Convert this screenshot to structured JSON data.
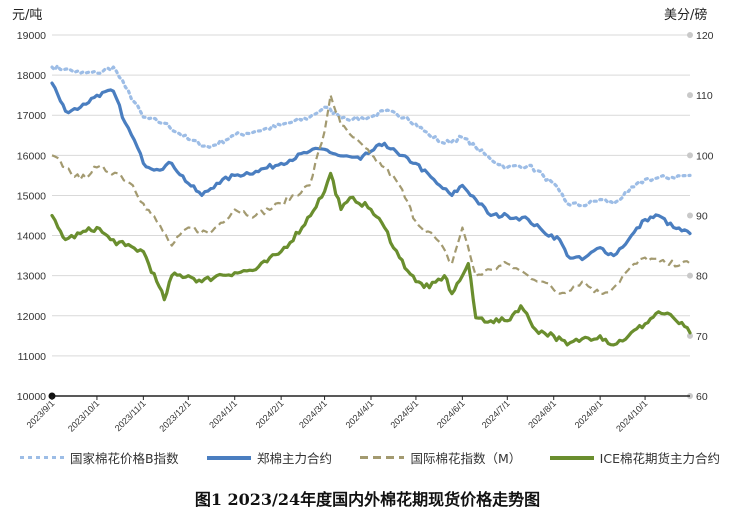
{
  "caption": "图1 2023/24年度国内外棉花期现货价格走势图",
  "chart_data": {
    "type": "line",
    "left_unit": "元/吨",
    "right_unit": "美分/磅",
    "left_axis": {
      "min": 10000,
      "max": 19000,
      "ticks": [
        10000,
        11000,
        12000,
        13000,
        14000,
        15000,
        16000,
        17000,
        18000,
        19000
      ]
    },
    "right_axis": {
      "min": 60,
      "max": 120,
      "ticks": [
        60,
        70,
        80,
        90,
        100,
        110,
        120
      ]
    },
    "grid": true,
    "legend_position": "bottom",
    "x_tick_labels": [
      "2023/9/1",
      "2023/10/1",
      "2023/11/1",
      "2023/12/1",
      "2024/1/1",
      "2024/2/1",
      "2024/3/1",
      "2024/4/1",
      "2024/5/1",
      "2024/6/1",
      "2024/7/1",
      "2024/8/1",
      "2024/9/1",
      "2024/10/1"
    ],
    "x_range": [
      "2023/9/1",
      "2024/10/31"
    ],
    "series": [
      {
        "name": "国家棉花价格B指数",
        "axis": "left",
        "style": "dotted",
        "color": "#9dbde6",
        "points": [
          [
            "2023/9/1",
            18200
          ],
          [
            "2023/9/10",
            18150
          ],
          [
            "2023/9/20",
            18050
          ],
          [
            "2023/10/1",
            18050
          ],
          [
            "2023/10/12",
            18200
          ],
          [
            "2023/10/20",
            17700
          ],
          [
            "2023/11/1",
            16950
          ],
          [
            "2023/11/15",
            16800
          ],
          [
            "2023/12/1",
            16400
          ],
          [
            "2023/12/15",
            16200
          ],
          [
            "2024/1/1",
            16500
          ],
          [
            "2024/1/15",
            16600
          ],
          [
            "2024/2/1",
            16750
          ],
          [
            "2024/2/20",
            16950
          ],
          [
            "2024/3/1",
            17200
          ],
          [
            "2024/3/10",
            17000
          ],
          [
            "2024/3/20",
            16900
          ],
          [
            "2024/4/1",
            16950
          ],
          [
            "2024/4/10",
            17100
          ],
          [
            "2024/4/25",
            16950
          ],
          [
            "2024/5/10",
            16500
          ],
          [
            "2024/5/20",
            16300
          ],
          [
            "2024/6/1",
            16450
          ],
          [
            "2024/6/10",
            16200
          ],
          [
            "2024/6/20",
            15900
          ],
          [
            "2024/7/1",
            15700
          ],
          [
            "2024/7/15",
            15750
          ],
          [
            "2024/7/25",
            15500
          ],
          [
            "2024/8/5",
            15100
          ],
          [
            "2024/8/10",
            14800
          ],
          [
            "2024/8/20",
            14750
          ],
          [
            "2024/9/1",
            14900
          ],
          [
            "2024/9/10",
            14800
          ],
          [
            "2024/9/20",
            15100
          ],
          [
            "2024/10/1",
            15400
          ],
          [
            "2024/10/31",
            15500
          ]
        ]
      },
      {
        "name": "郑棉主力合约",
        "axis": "left",
        "style": "solid",
        "color": "#4a7ec0",
        "points": [
          [
            "2023/9/1",
            17800
          ],
          [
            "2023/9/5",
            17500
          ],
          [
            "2023/9/10",
            17100
          ],
          [
            "2023/9/20",
            17200
          ],
          [
            "2023/10/1",
            17500
          ],
          [
            "2023/10/12",
            17600
          ],
          [
            "2023/10/20",
            16800
          ],
          [
            "2023/10/28",
            16200
          ],
          [
            "2023/11/1",
            15800
          ],
          [
            "2023/11/10",
            15650
          ],
          [
            "2023/11/20",
            15800
          ],
          [
            "2023/12/1",
            15300
          ],
          [
            "2023/12/10",
            15000
          ],
          [
            "2023/12/20",
            15300
          ],
          [
            "2024/1/1",
            15500
          ],
          [
            "2024/1/15",
            15600
          ],
          [
            "2024/2/1",
            15800
          ],
          [
            "2024/2/20",
            16100
          ],
          [
            "2024/3/1",
            16150
          ],
          [
            "2024/3/10",
            16000
          ],
          [
            "2024/3/25",
            15900
          ],
          [
            "2024/4/1",
            16100
          ],
          [
            "2024/4/10",
            16300
          ],
          [
            "2024/4/20",
            16000
          ],
          [
            "2024/5/1",
            15800
          ],
          [
            "2024/5/15",
            15300
          ],
          [
            "2024/5/25",
            15000
          ],
          [
            "2024/6/1",
            15250
          ],
          [
            "2024/6/10",
            14900
          ],
          [
            "2024/6/20",
            14500
          ],
          [
            "2024/7/1",
            14500
          ],
          [
            "2024/7/15",
            14400
          ],
          [
            "2024/7/25",
            14100
          ],
          [
            "2024/8/5",
            13900
          ],
          [
            "2024/8/10",
            13500
          ],
          [
            "2024/8/20",
            13400
          ],
          [
            "2024/9/1",
            13700
          ],
          [
            "2024/9/10",
            13500
          ],
          [
            "2024/9/20",
            13900
          ],
          [
            "2024/10/1",
            14400
          ],
          [
            "2024/10/10",
            14500
          ],
          [
            "2024/10/20",
            14200
          ],
          [
            "2024/10/31",
            14050
          ]
        ]
      },
      {
        "name": "国际棉花指数（M）",
        "axis": "right",
        "style": "dashed",
        "color": "#a39a70",
        "points": [
          [
            "2023/9/1",
            100
          ],
          [
            "2023/9/10",
            98
          ],
          [
            "2023/9/20",
            96
          ],
          [
            "2023/10/1",
            98
          ],
          [
            "2023/10/15",
            97
          ],
          [
            "2023/10/25",
            95
          ],
          [
            "2023/11/1",
            92
          ],
          [
            "2023/11/10",
            89
          ],
          [
            "2023/11/20",
            85
          ],
          [
            "2023/12/1",
            88
          ],
          [
            "2023/12/15",
            87
          ],
          [
            "2024/1/1",
            91
          ],
          [
            "2024/1/15",
            90
          ],
          [
            "2024/2/1",
            92
          ],
          [
            "2024/2/20",
            95
          ],
          [
            "2024/3/1",
            104
          ],
          [
            "2024/3/5",
            110
          ],
          [
            "2024/3/12",
            105
          ],
          [
            "2024/3/20",
            103
          ],
          [
            "2024/4/1",
            100
          ],
          [
            "2024/4/10",
            98
          ],
          [
            "2024/4/20",
            95
          ],
          [
            "2024/5/1",
            89
          ],
          [
            "2024/5/15",
            86
          ],
          [
            "2024/5/25",
            82
          ],
          [
            "2024/6/1",
            88
          ],
          [
            "2024/6/10",
            80
          ],
          [
            "2024/6/20",
            81
          ],
          [
            "2024/7/1",
            82
          ],
          [
            "2024/7/15",
            80
          ],
          [
            "2024/7/25",
            79
          ],
          [
            "2024/8/5",
            77
          ],
          [
            "2024/8/20",
            79
          ],
          [
            "2024/9/1",
            77
          ],
          [
            "2024/9/10",
            78
          ],
          [
            "2024/9/20",
            81
          ],
          [
            "2024/10/1",
            83
          ],
          [
            "2024/10/15",
            82
          ],
          [
            "2024/10/31",
            82
          ]
        ]
      },
      {
        "name": "ICE棉花期货主力合约",
        "axis": "right",
        "style": "solid",
        "color": "#6a8e2e",
        "points": [
          [
            "2023/9/1",
            90
          ],
          [
            "2023/9/5",
            88
          ],
          [
            "2023/9/10",
            86
          ],
          [
            "2023/9/20",
            87
          ],
          [
            "2023/10/1",
            88
          ],
          [
            "2023/10/10",
            86
          ],
          [
            "2023/10/20",
            85
          ],
          [
            "2023/11/1",
            84
          ],
          [
            "2023/11/10",
            79
          ],
          [
            "2023/11/15",
            76
          ],
          [
            "2023/11/20",
            80
          ],
          [
            "2023/12/1",
            80
          ],
          [
            "2023/12/10",
            79
          ],
          [
            "2023/12/20",
            80
          ],
          [
            "2024/1/1",
            80.5
          ],
          [
            "2024/1/15",
            81
          ],
          [
            "2024/2/1",
            84
          ],
          [
            "2024/2/15",
            88
          ],
          [
            "2024/3/1",
            94
          ],
          [
            "2024/3/5",
            97
          ],
          [
            "2024/3/12",
            91
          ],
          [
            "2024/3/20",
            93
          ],
          [
            "2024/4/1",
            91
          ],
          [
            "2024/4/10",
            88
          ],
          [
            "2024/4/20",
            83
          ],
          [
            "2024/5/1",
            79
          ],
          [
            "2024/5/10",
            78
          ],
          [
            "2024/5/20",
            80
          ],
          [
            "2024/5/25",
            77
          ],
          [
            "2024/6/1",
            80
          ],
          [
            "2024/6/5",
            82
          ],
          [
            "2024/6/10",
            73
          ],
          [
            "2024/6/20",
            72.5
          ],
          [
            "2024/7/1",
            72.5
          ],
          [
            "2024/7/10",
            75
          ],
          [
            "2024/7/20",
            71
          ],
          [
            "2024/8/1",
            70
          ],
          [
            "2024/8/10",
            68.5
          ],
          [
            "2024/8/20",
            69.5
          ],
          [
            "2024/9/1",
            70
          ],
          [
            "2024/9/10",
            68.5
          ],
          [
            "2024/9/20",
            70
          ],
          [
            "2024/10/1",
            72
          ],
          [
            "2024/10/10",
            74
          ],
          [
            "2024/10/20",
            73
          ],
          [
            "2024/10/31",
            70.5
          ]
        ]
      }
    ]
  }
}
